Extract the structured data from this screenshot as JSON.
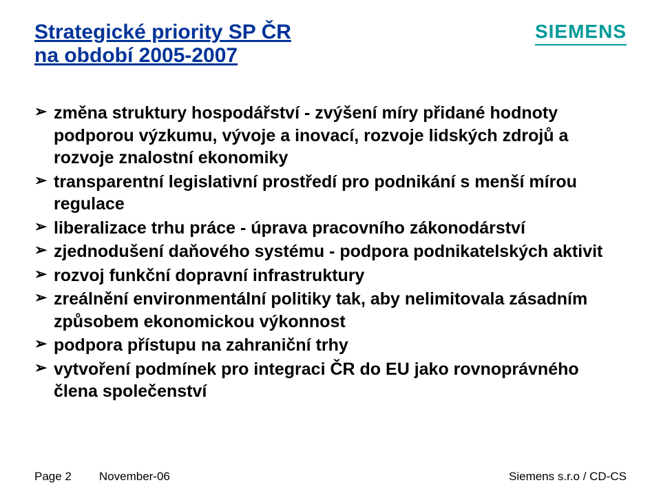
{
  "colors": {
    "title_color": "#003399",
    "logo_color": "#009999",
    "bullet_arrow_color": "#000000",
    "body_text_color": "#000000",
    "background": "#ffffff"
  },
  "typography": {
    "title_fontsize": 30,
    "title_weight": "bold",
    "body_fontsize": 25,
    "body_weight": "bold",
    "footer_fontsize": 17,
    "logo_fontsize": 28
  },
  "header": {
    "title_line1": "Strategické priority SP ČR",
    "title_line2": "na období 2005-2007",
    "logo_text": "SIEMENS"
  },
  "bullets": [
    "změna struktury hospodářství - zvýšení míry  přidané hodnoty podporou výzkumu, vývoje a inovací, rozvoje lidských zdrojů a rozvoje znalostní ekonomiky",
    "transparentní legislativní prostředí pro podnikání s menší mírou regulace",
    "liberalizace trhu práce - úprava pracovního zákonodárství",
    "zjednodušení daňového systému - podpora podnikatelských aktivit",
    "rozvoj funkční dopravní infrastruktury",
    "zreálnění environmentální politiky tak, aby nelimitovala zásadním způsobem ekonomickou výkonnost",
    "podpora přístupu na zahraniční trhy",
    "vytvoření podmínek pro integraci ČR do EU jako rovnoprávného člena společenství"
  ],
  "bullet_glyph": "➢",
  "footer": {
    "page_label": "Page 2",
    "date": "November-06",
    "company": "Siemens s.r.o / CD-CS"
  }
}
